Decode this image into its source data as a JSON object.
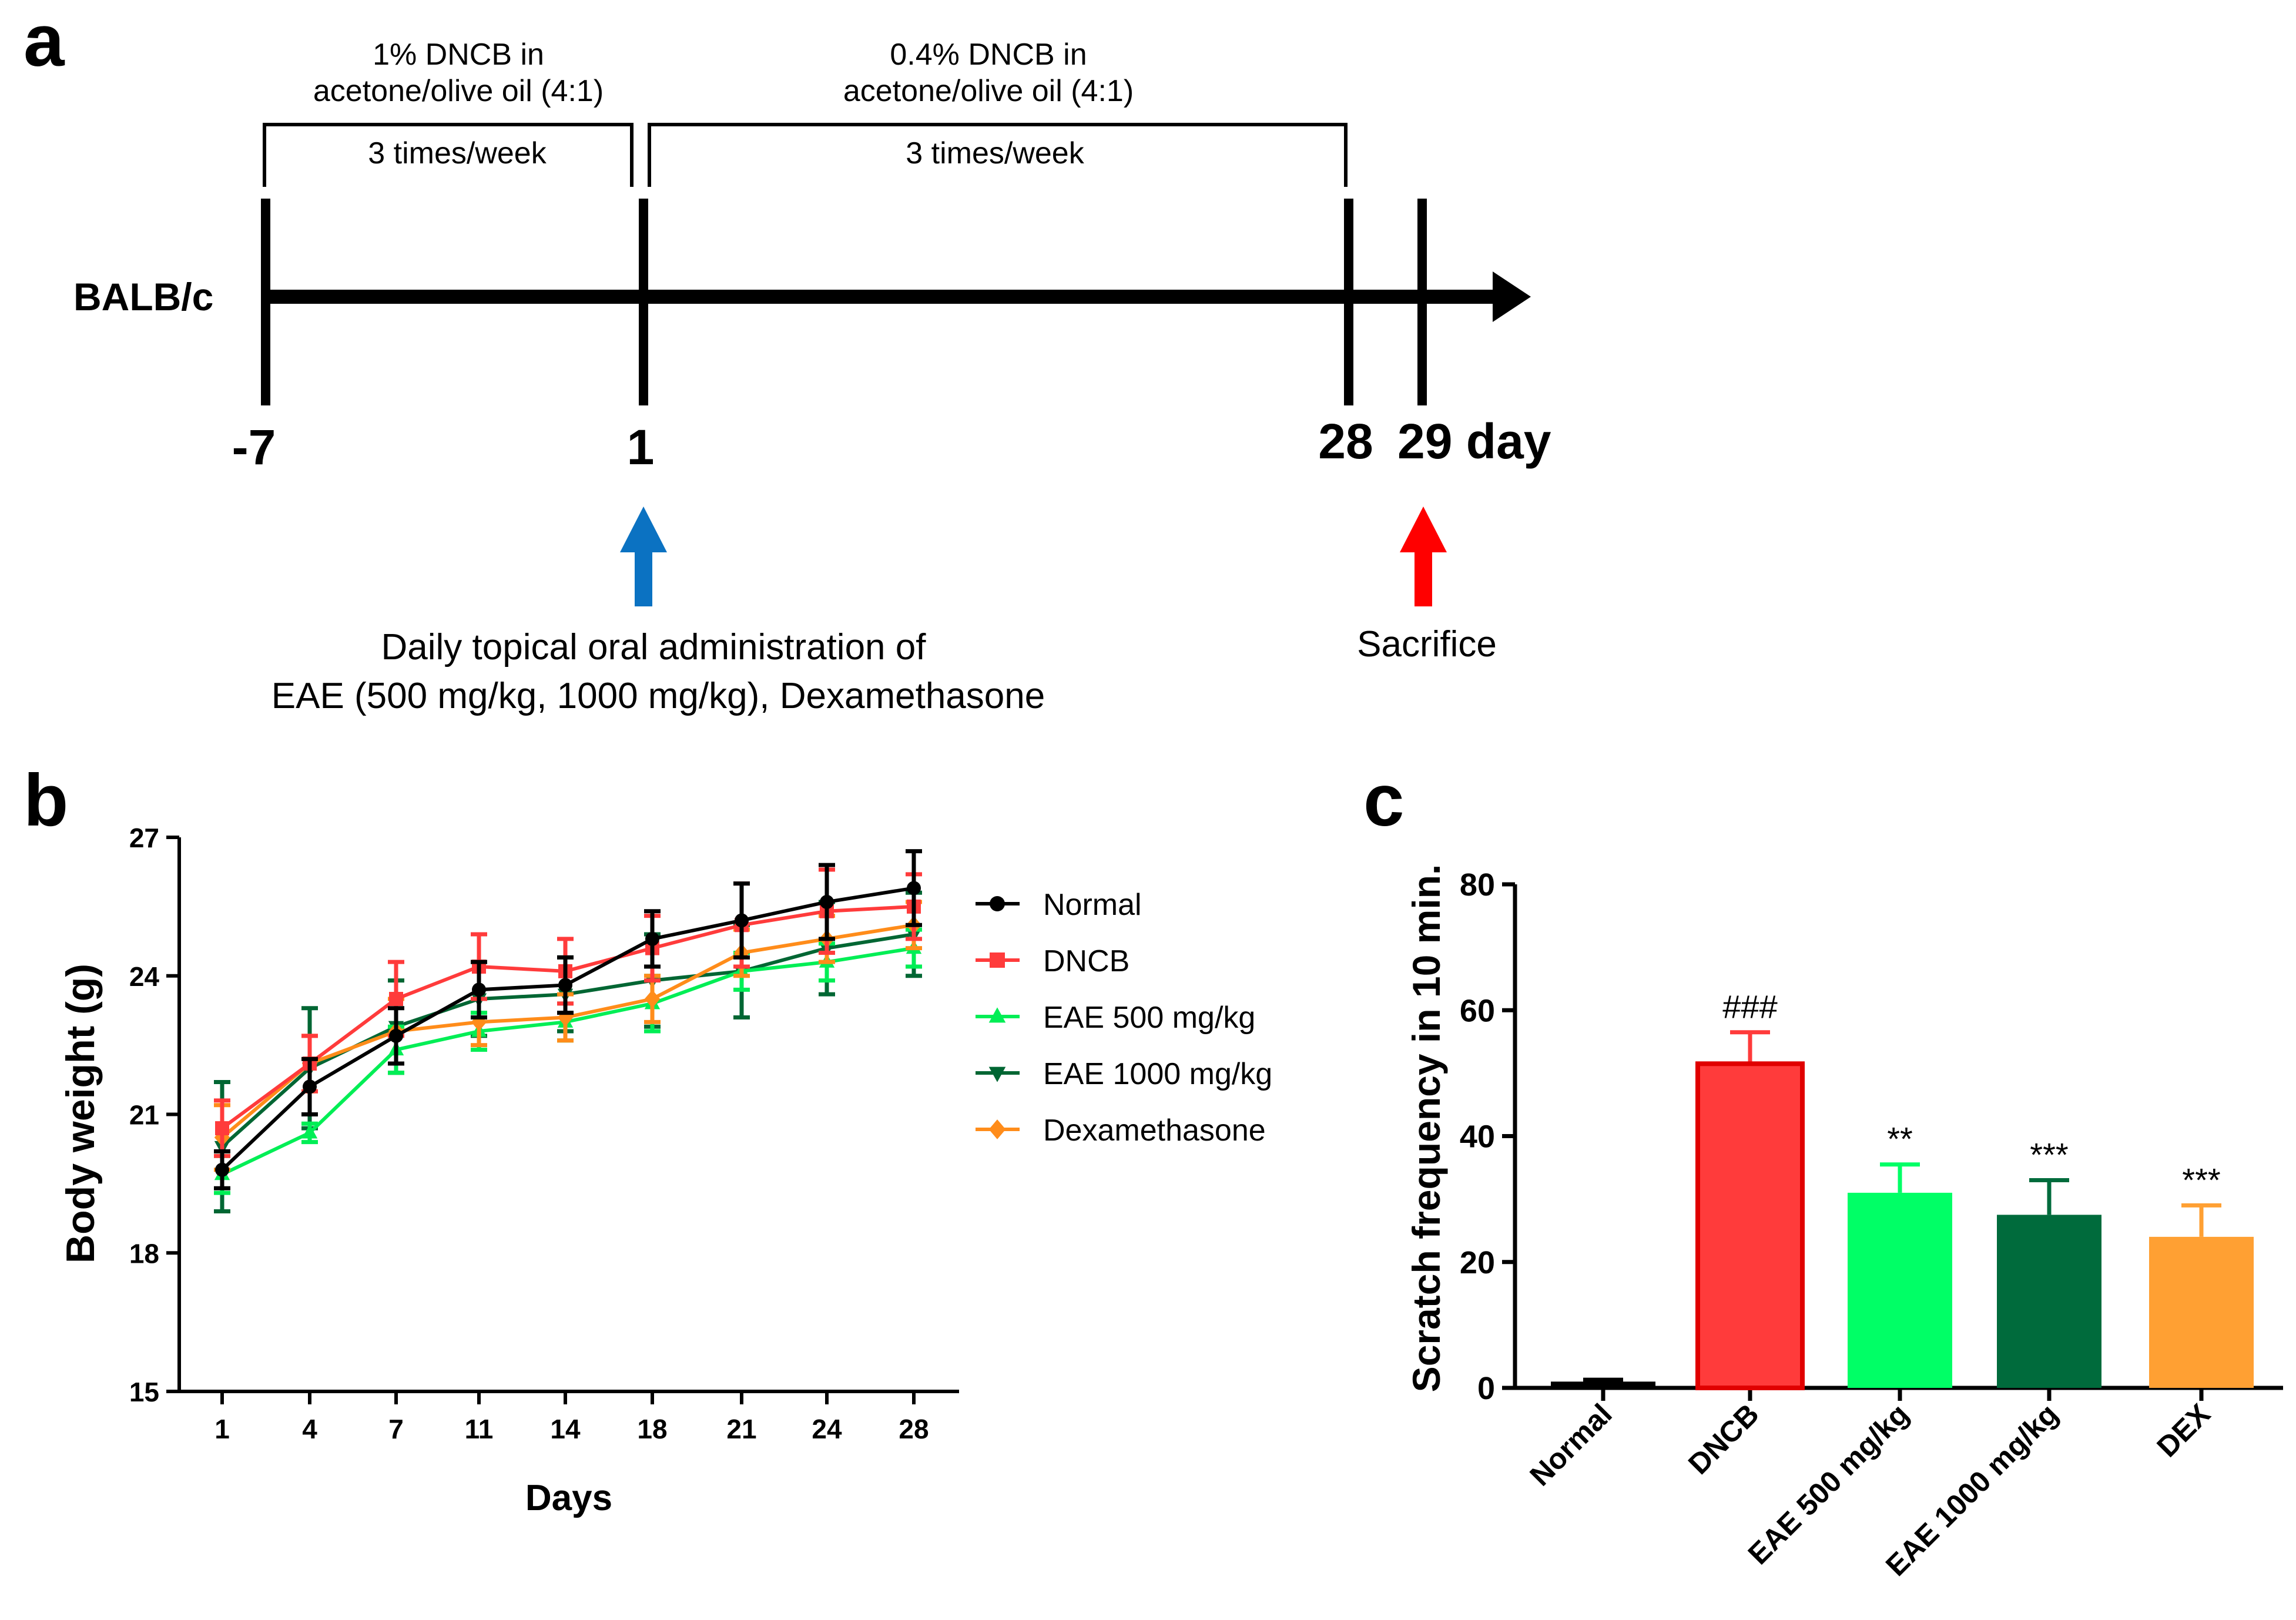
{
  "panel_a": {
    "label": "a",
    "strain": "BALB/c",
    "phase1": {
      "line1": "1% DNCB in",
      "line2": "acetone/olive oil (4:1)",
      "freq": "3 times/week"
    },
    "phase2": {
      "line1": "0.4% DNCB in",
      "line2": "acetone/olive oil (4:1)",
      "freq": "3 times/week"
    },
    "days": [
      "-7",
      "1",
      "28",
      "29 day"
    ],
    "treatment": {
      "line1": "Daily topical oral administration of",
      "line2": "EAE (500 mg/kg, 1000 mg/kg), Dexamethasone"
    },
    "sacrifice": "Sacrifice",
    "colors": {
      "treatment_arrow": "#0b72c2",
      "sacrifice_arrow": "#ff0000"
    }
  },
  "chart_data": [
    {
      "panel": "b",
      "type": "line",
      "title": "",
      "xlabel": "Days",
      "ylabel": "Body weight (g)",
      "categories": [
        "1",
        "4",
        "7",
        "11",
        "14",
        "18",
        "21",
        "24",
        "28"
      ],
      "ylim": [
        15,
        27
      ],
      "yticks": [
        "15",
        "18",
        "21",
        "24",
        "27"
      ],
      "legend_position": "right",
      "series": [
        {
          "name": "Normal",
          "color": "#000000",
          "marker": "circle",
          "values": [
            19.8,
            21.6,
            22.7,
            23.7,
            23.8,
            24.8,
            25.2,
            25.6,
            25.9
          ],
          "errors": [
            0.4,
            0.6,
            0.6,
            0.6,
            0.6,
            0.6,
            0.8,
            0.8,
            0.8
          ]
        },
        {
          "name": "DNCB",
          "color": "#ff3b3b",
          "marker": "square",
          "values": [
            20.7,
            22.1,
            23.5,
            24.2,
            24.1,
            24.6,
            25.1,
            25.4,
            25.5
          ],
          "errors": [
            0.6,
            0.6,
            0.8,
            0.7,
            0.7,
            0.7,
            0.9,
            0.9,
            0.7
          ]
        },
        {
          "name": "EAE 500 mg/kg",
          "color": "#00ee55",
          "marker": "triangle-up",
          "values": [
            19.7,
            20.6,
            22.4,
            22.8,
            23.0,
            23.4,
            24.1,
            24.3,
            24.6
          ],
          "errors": [
            0.4,
            0.2,
            0.5,
            0.4,
            0.4,
            0.6,
            0.4,
            0.4,
            0.4
          ]
        },
        {
          "name": "EAE 1000 mg/kg",
          "color": "#006633",
          "marker": "triangle-down",
          "values": [
            20.3,
            22.0,
            22.9,
            23.5,
            23.6,
            23.9,
            24.1,
            24.6,
            24.9
          ],
          "errors": [
            1.4,
            1.3,
            1.0,
            0.8,
            0.8,
            1.0,
            1.0,
            1.0,
            0.9
          ]
        },
        {
          "name": "Dexamethasone",
          "color": "#ff8c1a",
          "marker": "diamond",
          "values": [
            20.5,
            22.1,
            22.8,
            23.0,
            23.1,
            23.5,
            24.5,
            24.8,
            25.1
          ],
          "errors": [
            0.7,
            0.6,
            0.7,
            0.5,
            0.5,
            0.5,
            0.5,
            0.5,
            0.5
          ]
        }
      ]
    },
    {
      "panel": "c",
      "type": "bar",
      "title": "",
      "xlabel": "",
      "ylabel": "Scratch frequency in 10 min.",
      "categories": [
        "Normal",
        "DNCB",
        "EAE 500 mg/kg",
        "EAE 1000 mg/kg",
        "DEX"
      ],
      "values": [
        1,
        51.5,
        31,
        27.5,
        24
      ],
      "errors": [
        0.3,
        5,
        4.5,
        5.5,
        5
      ],
      "annotations": [
        "",
        "###",
        "**",
        "***",
        "***"
      ],
      "colors": [
        "#000000",
        "#ff3b3b",
        "#00ff66",
        "#006b3c",
        "#ffa033"
      ],
      "ylim": [
        0,
        80
      ],
      "yticks": [
        "0",
        "20",
        "40",
        "60",
        "80"
      ]
    }
  ]
}
